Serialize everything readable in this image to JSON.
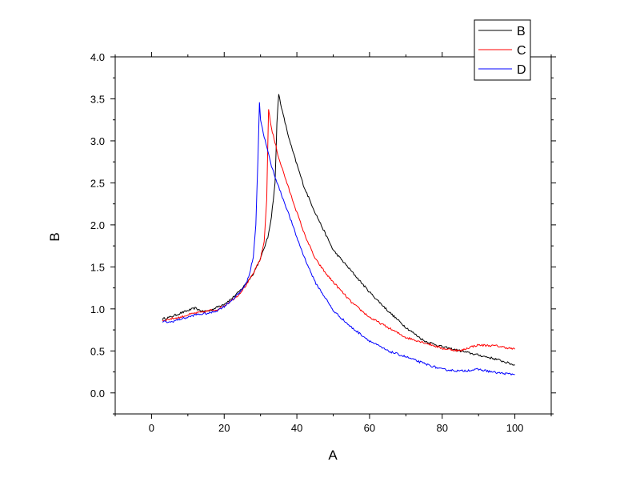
{
  "chart_data": {
    "type": "line",
    "title": "",
    "xlabel": "A",
    "ylabel": "B",
    "xlim": [
      -10,
      110
    ],
    "ylim": [
      -0.25,
      4.0
    ],
    "x_ticks": [
      0,
      20,
      40,
      60,
      80,
      100
    ],
    "y_ticks": [
      0.0,
      0.5,
      1.0,
      1.5,
      2.0,
      2.5,
      3.0,
      3.5,
      4.0
    ],
    "x_tick_labels": [
      "0",
      "20",
      "40",
      "60",
      "80",
      "100"
    ],
    "y_tick_labels": [
      "0.0",
      "0.5",
      "1.0",
      "1.5",
      "2.0",
      "2.5",
      "3.0",
      "3.5",
      "4.0"
    ],
    "grid": false,
    "legend_position": "top-right",
    "series": [
      {
        "name": "B",
        "color": "#000000",
        "x": [
          3,
          5,
          8,
          10,
          12,
          14,
          16,
          18,
          20,
          22,
          24,
          26,
          28,
          30,
          32,
          33,
          34,
          34.5,
          35,
          36,
          38,
          40,
          42,
          45,
          48,
          50,
          55,
          60,
          65,
          70,
          75,
          80,
          85,
          90,
          95,
          100
        ],
        "y": [
          0.88,
          0.9,
          0.95,
          0.98,
          1.01,
          0.97,
          0.98,
          1.02,
          1.06,
          1.12,
          1.2,
          1.3,
          1.42,
          1.6,
          1.85,
          2.1,
          2.5,
          3.2,
          3.56,
          3.35,
          3.0,
          2.72,
          2.45,
          2.15,
          1.88,
          1.7,
          1.45,
          1.2,
          0.98,
          0.78,
          0.62,
          0.55,
          0.5,
          0.45,
          0.4,
          0.33
        ]
      },
      {
        "name": "C",
        "color": "#ff0000",
        "x": [
          3,
          5,
          8,
          10,
          12,
          14,
          16,
          18,
          20,
          22,
          24,
          26,
          28,
          30,
          31,
          31.7,
          32.2,
          33,
          35,
          38,
          40,
          42,
          45,
          48,
          50,
          55,
          60,
          65,
          70,
          75,
          80,
          85,
          88,
          90,
          95,
          100
        ],
        "y": [
          0.86,
          0.88,
          0.9,
          0.93,
          0.95,
          0.96,
          0.98,
          0.99,
          1.04,
          1.1,
          1.17,
          1.28,
          1.42,
          1.6,
          1.8,
          2.3,
          3.38,
          3.15,
          2.8,
          2.4,
          2.15,
          1.9,
          1.6,
          1.42,
          1.32,
          1.08,
          0.9,
          0.78,
          0.66,
          0.6,
          0.53,
          0.5,
          0.55,
          0.57,
          0.56,
          0.52
        ]
      },
      {
        "name": "D",
        "color": "#0000ff",
        "x": [
          3,
          5,
          8,
          10,
          12,
          14,
          16,
          18,
          20,
          22,
          24,
          26,
          27,
          28,
          28.7,
          29.3,
          29.7,
          30,
          31,
          33,
          35,
          38,
          40,
          42,
          45,
          48,
          50,
          55,
          60,
          65,
          70,
          75,
          80,
          85,
          90,
          95,
          100
        ],
        "y": [
          0.85,
          0.84,
          0.88,
          0.9,
          0.93,
          0.94,
          0.95,
          0.98,
          1.03,
          1.1,
          1.18,
          1.3,
          1.42,
          1.62,
          2.0,
          2.8,
          3.46,
          3.25,
          3.05,
          2.7,
          2.45,
          2.1,
          1.85,
          1.62,
          1.32,
          1.12,
          0.98,
          0.78,
          0.62,
          0.5,
          0.43,
          0.35,
          0.28,
          0.26,
          0.28,
          0.24,
          0.22
        ]
      }
    ]
  }
}
